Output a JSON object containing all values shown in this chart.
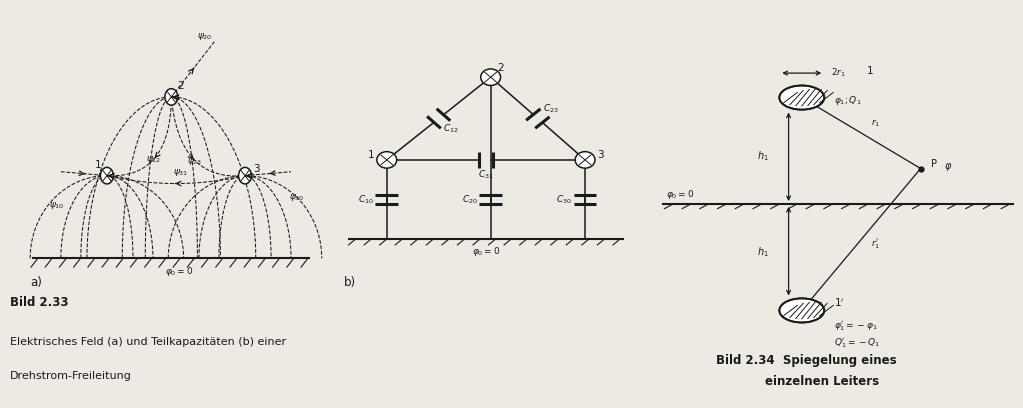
{
  "bg_color": "#ede9e3",
  "line_color": "#1a1a1a",
  "fig_width": 10.23,
  "fig_height": 4.08,
  "title_left": "Bild 2.33",
  "subtitle_line1": "Elektrisches Feld (a) und Teilkapazitäten (b) einer",
  "subtitle_line2": "Drehstrom-Freileitung",
  "title_right_line1": "Bild 2.34  Spiegelung eines",
  "title_right_line2": "einzelnen Leiters"
}
